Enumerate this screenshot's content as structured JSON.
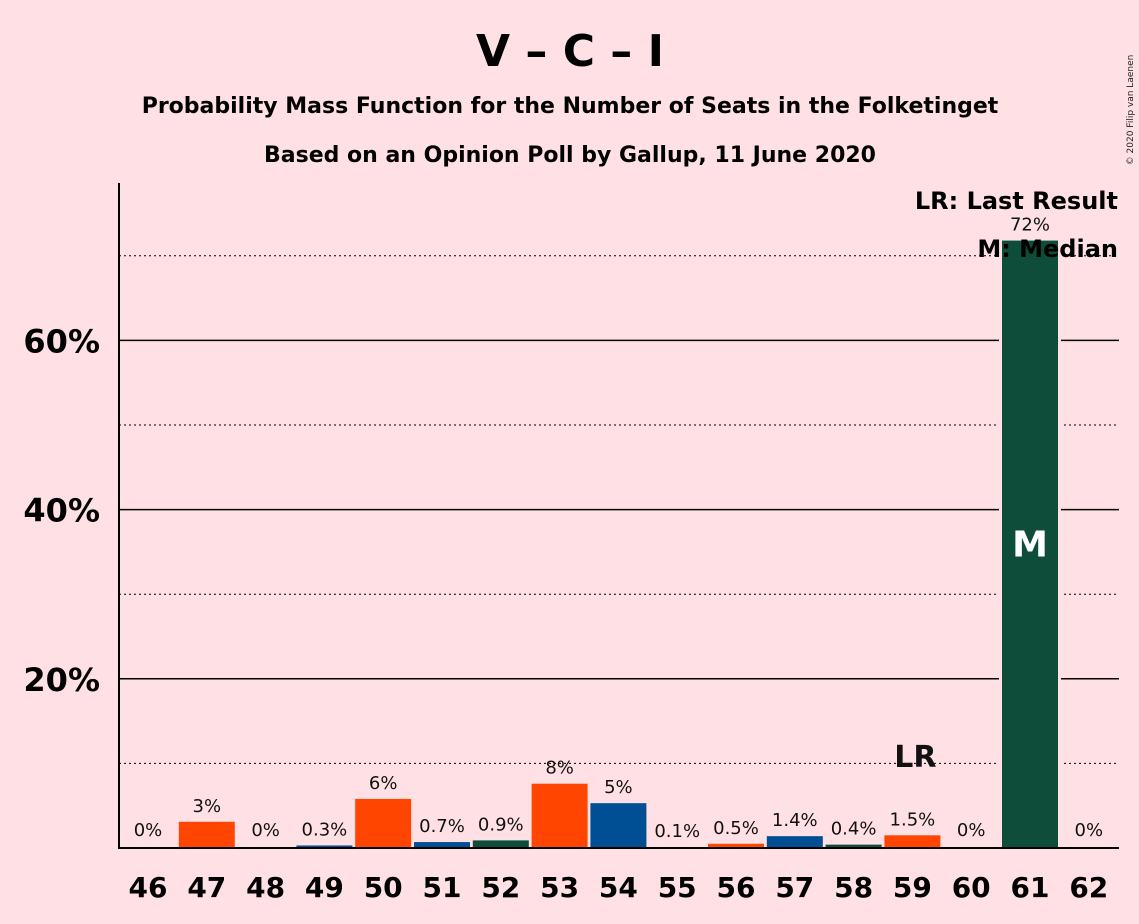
{
  "chart_data": {
    "type": "bar",
    "title": "V – C – I",
    "subtitle_line1": "Probability Mass Function for the Number of Seats in the Folketinget",
    "subtitle_line2": "Based on an Opinion Poll by Gallup, 11 June 2020",
    "copyright": "© 2020 Filip van Laenen",
    "categories": [
      "46",
      "47",
      "48",
      "49",
      "50",
      "51",
      "52",
      "53",
      "54",
      "55",
      "56",
      "57",
      "58",
      "59",
      "60",
      "61",
      "62"
    ],
    "values": [
      0,
      3.1,
      0,
      0.3,
      5.8,
      0.7,
      0.9,
      7.6,
      5.3,
      0.1,
      0.5,
      1.4,
      0.4,
      1.5,
      0,
      71.8,
      0
    ],
    "value_labels": [
      "0%",
      "3%",
      "0%",
      "0.3%",
      "6%",
      "0.7%",
      "0.9%",
      "8%",
      "5%",
      "0.1%",
      "0.5%",
      "1.4%",
      "0.4%",
      "1.5%",
      "0%",
      "72%",
      "0%"
    ],
    "bar_colors": [
      "#FF4500",
      "#FF4500",
      "#FF4500",
      "#004F94",
      "#FF4500",
      "#004F94",
      "#0E4D3A",
      "#FF4500",
      "#004F94",
      "#0E4D3A",
      "#FF4500",
      "#004F94",
      "#0E4D3A",
      "#FF4500",
      "#FF4500",
      "#0E4D3A",
      "#0E4D3A"
    ],
    "ylim": [
      0,
      78
    ],
    "yticks": [
      20,
      40,
      60
    ],
    "ytick_labels": [
      "20%",
      "40%",
      "60%"
    ],
    "minor_gridlines": [
      10,
      30,
      50,
      70
    ],
    "median_category": "61",
    "median_marker": "M",
    "last_result_category": "59",
    "last_result_marker": "LR",
    "legend": [
      "LR: Last Result",
      "M: Median"
    ],
    "legend_position": "top-right"
  }
}
